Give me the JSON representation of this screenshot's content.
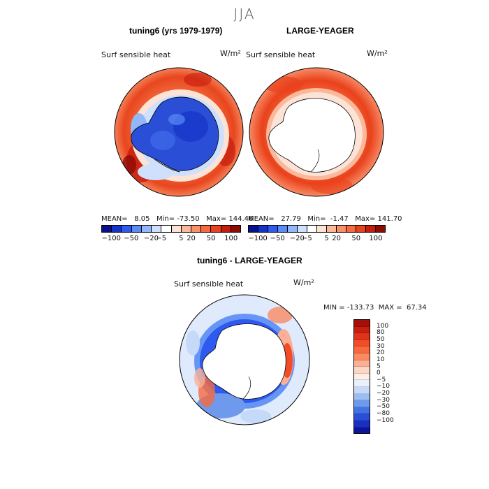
{
  "season": "JJA",
  "panels": [
    {
      "title": "tuning6 (yrs 1979-1979)",
      "field": "Surf sensible heat",
      "units": "W/m²",
      "mean_label": "MEAN=",
      "mean": "8.05",
      "min_label": "Min=",
      "min": "-73.50",
      "max_label": "Max=",
      "max": "144.46",
      "antarctica": "cool"
    },
    {
      "title": "LARGE-YEAGER",
      "field": "Surf sensible heat",
      "units": "W/m²",
      "mean_label": "MEAN=",
      "mean": "27.79",
      "min_label": "Min=",
      "min": "-1.47",
      "max_label": "Max=",
      "max": "141.70",
      "antarctica": "missing"
    }
  ],
  "colorbar_top": {
    "tick_labels": [
      "-100",
      "-50",
      "-20",
      "-5",
      "5",
      "20",
      "50",
      "100"
    ],
    "colors": [
      "#0a0f8c",
      "#1433c8",
      "#2e5af0",
      "#5a8cf5",
      "#93b8fa",
      "#cfe0fd",
      "#ffffff",
      "#fde3d6",
      "#fbb99c",
      "#f8906a",
      "#f56a3e",
      "#e9421c",
      "#c41d0d",
      "#8f0a05"
    ]
  },
  "difference": {
    "title": "tuning6 - LARGE-YEAGER",
    "field": "Surf sensible heat",
    "units": "W/m²",
    "min_label": "MIN =",
    "min": "-133.73",
    "max_label": "MAX =",
    "max": "67.34",
    "colorbar": {
      "levels": [
        "100",
        "80",
        "50",
        "30",
        "20",
        "10",
        "5",
        "0",
        "-5",
        "-10",
        "-20",
        "-30",
        "-50",
        "-80",
        "-100"
      ],
      "colors": [
        "#a50f0a",
        "#c81e0f",
        "#e0341a",
        "#f24d28",
        "#f7693e",
        "#fa8a62",
        "#fbb096",
        "#fcd7c7",
        "#fdeee6",
        "#e8f0fe",
        "#c5daf9",
        "#9cbdf4",
        "#6f99ec",
        "#4373e3",
        "#2a4fd6",
        "#1a2fc0",
        "#0c1596"
      ]
    }
  }
}
